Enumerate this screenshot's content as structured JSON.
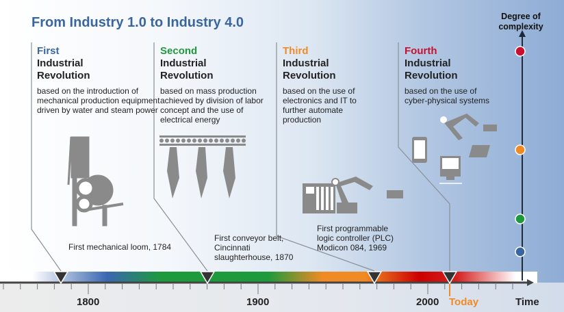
{
  "title": "From Industry 1.0 to Industry 4.0",
  "complexity_label": "Degree of complexity",
  "revolutions": [
    {
      "ordinal": "First",
      "name": "Industrial Revolution",
      "description": "based on the introduction of  mechanical production equipment driven by water and steam power",
      "color": "#3a66a0",
      "event": "First mechanical loom, 1784",
      "icon": "loom-icon"
    },
    {
      "ordinal": "Second",
      "name": "Industrial Revolution",
      "description": "based on mass production achieved by division of labor concept and the use of electrical energy",
      "color": "#1e9a3c",
      "event": "First conveyor belt, Cincinnati slaughterhouse, 1870",
      "icon": "conveyor-icon"
    },
    {
      "ordinal": "Third",
      "name": "Industrial Revolution",
      "description": "based on the use of electronics and IT to further automate production",
      "color": "#f08a24",
      "event": "First programmable logic controller (PLC) Modicon 084, 1969",
      "icon": "robot-arm-plc-icon"
    },
    {
      "ordinal": "Fourth",
      "name": "Industrial Revolution",
      "description": "based on the use of cyber-physical systems",
      "color": "#c8102e",
      "event": "",
      "icon": "cyber-physical-icon"
    }
  ],
  "axis": {
    "ticks": [
      "1800",
      "1900",
      "2000"
    ],
    "today": "Today",
    "label": "Time",
    "today_color": "#f08a24"
  },
  "complexity_dots": [
    "#c8102e",
    "#f08a24",
    "#1e9a3c",
    "#3a66a0"
  ]
}
